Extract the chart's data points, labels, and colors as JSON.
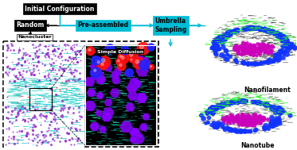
{
  "bg_color": "#ffffff",
  "cyan_color": "#00bcd4",
  "black_color": "#000000",
  "label_initial": "Initial Configuration",
  "label_random": "Random",
  "label_preassembled": "Pre-assembled",
  "label_umbrella": "Umbrella\nSampling",
  "label_nanocluster": "Nanocluster",
  "label_simple_diffusion": "Simple Diffusion",
  "label_nanofilament": "Nanofilament",
  "label_nanotube": "Nanotube",
  "nc_colors": {
    "purple": "#9932CC",
    "cyan_teal": "#40E0D0",
    "green": "#32CD32",
    "red": "#FF2222",
    "bg": "#ffffff"
  },
  "sd_colors": {
    "purple_ring": "#8B00FF",
    "cyan_bg": "#00CED1",
    "red_sphere": "#FF0000",
    "blue_sphere": "#0000FF",
    "green_tail": "#00AA44",
    "black_bg": "#000000"
  },
  "nf_colors": {
    "dark_bg": "#222222",
    "gray_tail": "#555555",
    "blue_head": "#1a3aff",
    "green_outer": "#22ff22",
    "purple_center": "#CC00CC",
    "white_inner": "#ffffff"
  }
}
